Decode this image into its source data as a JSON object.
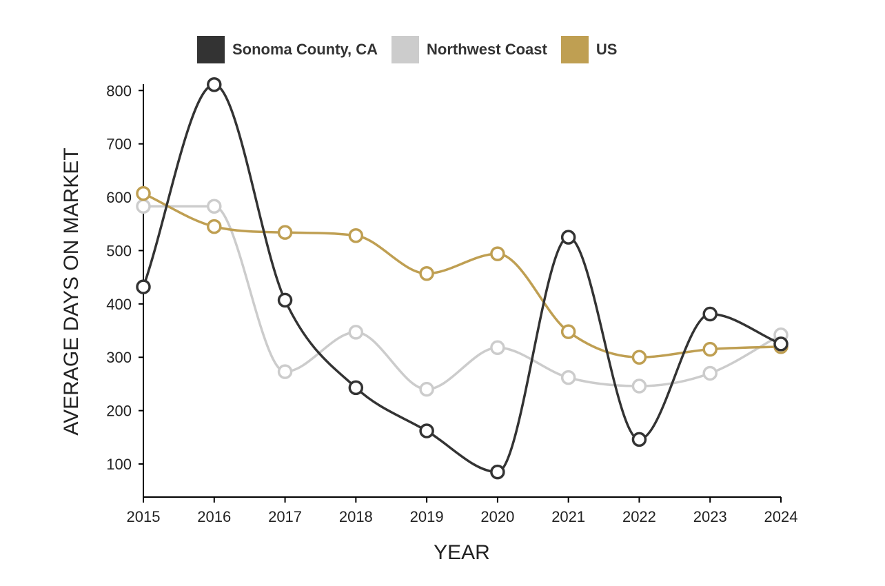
{
  "chart_data": {
    "type": "line",
    "title": "",
    "xlabel": "YEAR",
    "ylabel": "AVERAGE DAYS ON MARKET",
    "categories": [
      "2015",
      "2016",
      "2017",
      "2018",
      "2019",
      "2020",
      "2021",
      "2022",
      "2023",
      "2024"
    ],
    "yticks": [
      100,
      200,
      300,
      400,
      500,
      600,
      700,
      800
    ],
    "ytick_labels": [
      "100",
      "200",
      "300",
      "400",
      "500",
      "600",
      "700",
      "800"
    ],
    "ylim": [
      38,
      812
    ],
    "legend_position": "top",
    "grid": false,
    "series": [
      {
        "name": "Sonoma County, CA",
        "color": "#333333",
        "values": [
          432,
          811,
          407,
          243,
          162,
          85,
          525,
          146,
          381,
          325
        ]
      },
      {
        "name": "Northwest Coast",
        "color": "#cccccc",
        "values": [
          583,
          583,
          273,
          347,
          240,
          318,
          262,
          246,
          270,
          342
        ]
      },
      {
        "name": "US",
        "color": "#bf9f52",
        "values": [
          607,
          545,
          534,
          528,
          457,
          494,
          348,
          300,
          315,
          320
        ]
      }
    ]
  }
}
